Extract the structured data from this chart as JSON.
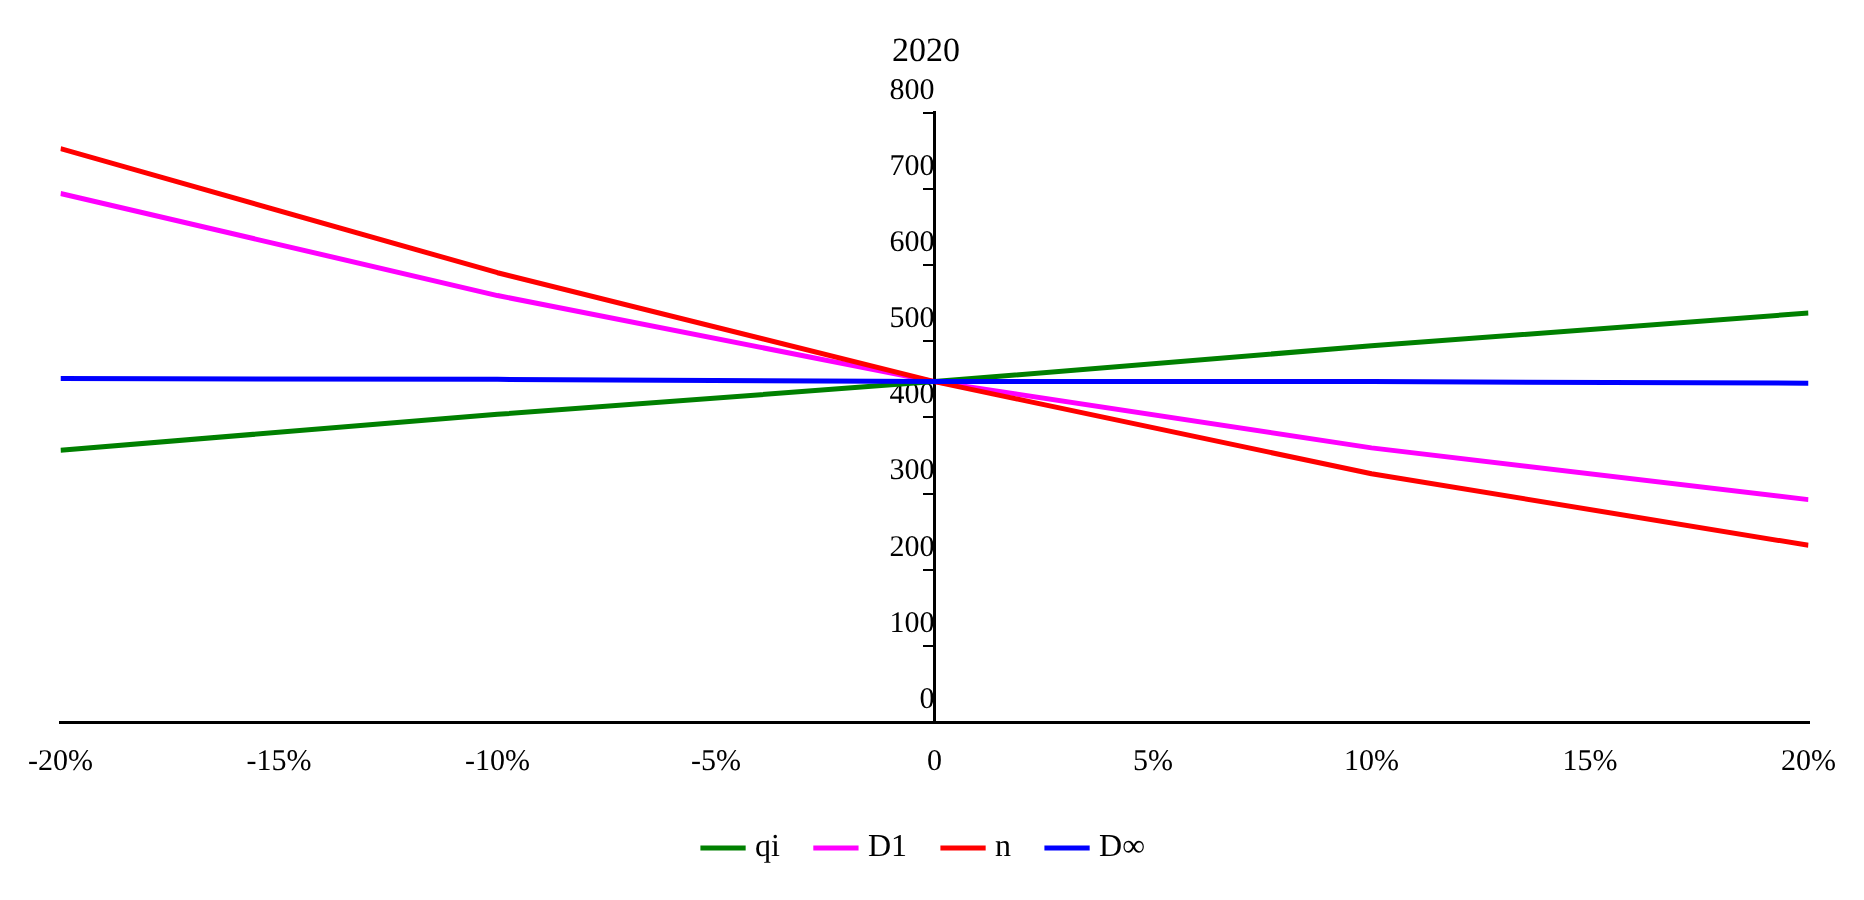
{
  "chart_data": {
    "type": "line",
    "title": "2020",
    "x": [
      -20,
      -10,
      0,
      10,
      20
    ],
    "series": [
      {
        "name": "qi",
        "color": "#008000",
        "values": [
          357,
          404,
          447,
          494,
          537
        ]
      },
      {
        "name": "D1",
        "color": "#ff00ff",
        "values": [
          694,
          560,
          447,
          360,
          292
        ]
      },
      {
        "name": "n",
        "color": "#ff0000",
        "values": [
          753,
          590,
          447,
          326,
          232
        ]
      },
      {
        "name": "D∞",
        "color": "#0000ff",
        "values": [
          451,
          450,
          447,
          447,
          445
        ]
      }
    ],
    "xlim": [
      -20,
      20
    ],
    "xticks": [
      {
        "value": -20,
        "label": "-20%"
      },
      {
        "value": -15,
        "label": "-15%"
      },
      {
        "value": -10,
        "label": "-10%"
      },
      {
        "value": -5,
        "label": "-5%"
      },
      0,
      {
        "value": 5,
        "label": "5%"
      },
      {
        "value": 10,
        "label": "10%"
      },
      {
        "value": 15,
        "label": "15%"
      },
      {
        "value": 20,
        "label": "20%"
      }
    ],
    "ylim": [
      0,
      800
    ],
    "yticks": [
      0,
      100,
      200,
      300,
      400,
      500,
      600,
      700,
      800
    ],
    "grid": false,
    "legend": "bottom",
    "marker": "none",
    "line_style": "solid"
  }
}
